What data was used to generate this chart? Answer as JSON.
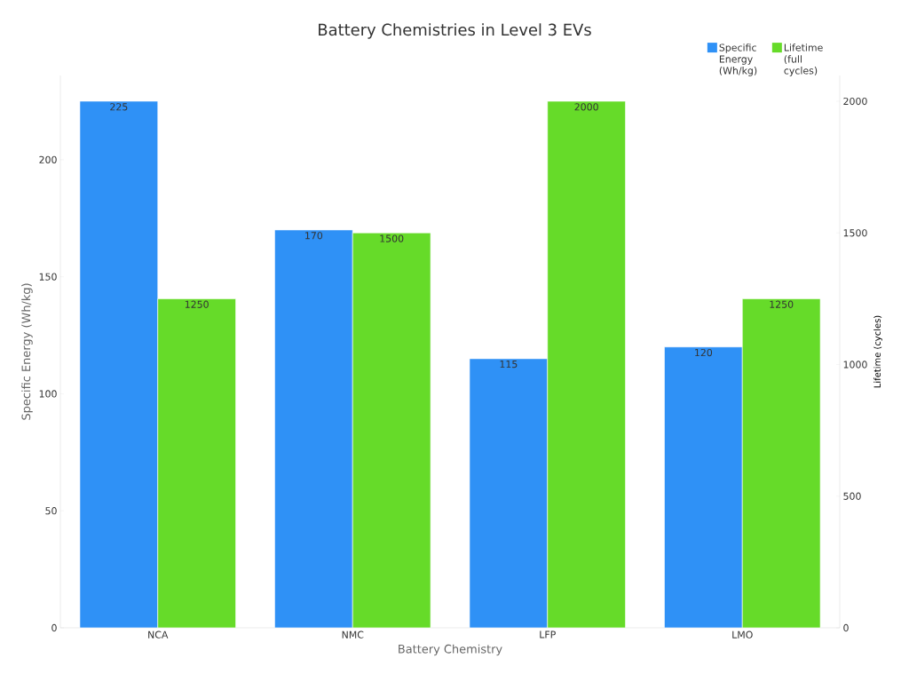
{
  "chart_data": {
    "type": "bar",
    "title": "Battery Chemistries in Level 3 EVs",
    "xlabel": "Battery Chemistry",
    "ylabel": "Specific Energy (Wh/kg)",
    "y2label": "Lifetime (cycles)",
    "categories": [
      "NCA",
      "NMC",
      "LFP",
      "LMO"
    ],
    "series": [
      {
        "name": "Specific Energy (Wh/kg)",
        "color": "#2f91f6",
        "values": [
          225,
          170,
          115,
          120
        ]
      },
      {
        "name": "Lifetime (full cycles)",
        "color": "#66db29",
        "values": [
          1250,
          1500,
          2000,
          1250
        ],
        "axis": "y2"
      }
    ],
    "ylim": [
      0,
      236
    ],
    "yticks": [
      0,
      50,
      100,
      150,
      200
    ],
    "y2lim": [
      0,
      2098
    ],
    "y2ticks": [
      0,
      500,
      1000,
      1500,
      2000
    ],
    "data_labels": true,
    "legend": "top right"
  }
}
